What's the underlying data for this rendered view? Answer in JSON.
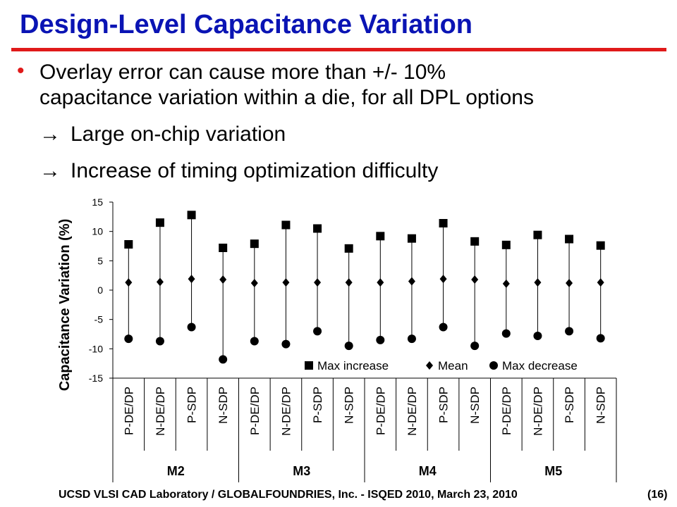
{
  "slide": {
    "title": "Design-Level Capacitance Variation",
    "bullet": [
      "Overlay error can cause more than +/- 10%",
      "capacitance variation within a die, for all DPL options"
    ],
    "sub1": "Large on-chip variation",
    "sub2": "Increase of timing optimization difficulty",
    "arrow_glyph": "→"
  },
  "footer": {
    "left": "UCSD VLSI CAD Laboratory /   GLOBALFOUNDRIES, Inc.   - ISQED 2010,   March 23, 2010",
    "right": "(16)"
  },
  "chart_data": {
    "type": "scatter",
    "ylabel": "Capacitance Variation (%)",
    "ylim": [
      -15,
      15
    ],
    "yticks": [
      15,
      10,
      5,
      0,
      -5,
      -10,
      -15
    ],
    "categories": [
      "P-DE/DP",
      "N-DE/DP",
      "P-SDP",
      "N-SDP",
      "P-DE/DP",
      "N-DE/DP",
      "P-SDP",
      "N-SDP",
      "P-DE/DP",
      "N-DE/DP",
      "P-SDP",
      "N-SDP",
      "P-DE/DP",
      "N-DE/DP",
      "P-SDP",
      "N-SDP"
    ],
    "groups": [
      {
        "label": "M2",
        "span": 4
      },
      {
        "label": "M3",
        "span": 4
      },
      {
        "label": "M4",
        "span": 4
      },
      {
        "label": "M5",
        "span": 4
      }
    ],
    "series": [
      {
        "name": "Max increase",
        "marker": "square",
        "values": [
          7.8,
          11.5,
          12.8,
          7.2,
          7.9,
          11.1,
          10.5,
          7.1,
          9.2,
          8.8,
          11.4,
          8.3,
          7.7,
          9.4,
          8.7,
          7.6
        ]
      },
      {
        "name": "Mean",
        "marker": "diamond",
        "values": [
          1.3,
          1.4,
          1.9,
          1.8,
          1.2,
          1.3,
          1.3,
          1.3,
          1.3,
          1.5,
          1.9,
          1.8,
          1.1,
          1.3,
          1.2,
          1.3
        ]
      },
      {
        "name": "Max decrease",
        "marker": "circle",
        "values": [
          -8.3,
          -8.7,
          -6.3,
          -11.8,
          -8.7,
          -9.2,
          -7.0,
          -9.5,
          -8.5,
          -8.3,
          -6.3,
          -9.5,
          -7.4,
          -7.8,
          -7.0,
          -8.2
        ]
      }
    ],
    "legend": "bottom-right, inside plot",
    "grid": false
  }
}
